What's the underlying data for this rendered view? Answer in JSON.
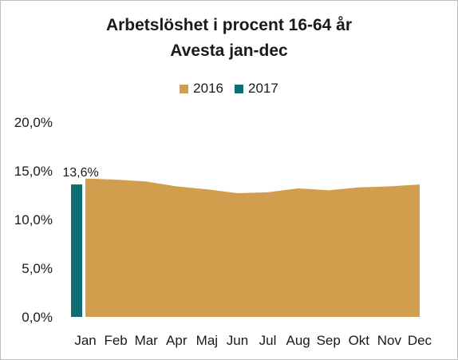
{
  "chart_data": {
    "type": "area",
    "title": "Arbetslöshet i procent 16-64 år",
    "subtitle": "Avesta jan-dec",
    "categories": [
      "Jan",
      "Feb",
      "Mar",
      "Apr",
      "Maj",
      "Jun",
      "Jul",
      "Aug",
      "Sep",
      "Okt",
      "Nov",
      "Dec"
    ],
    "series": [
      {
        "name": "2016",
        "chart_type": "area",
        "color": "#d19e4e",
        "values": [
          14.2,
          14.1,
          13.9,
          13.4,
          13.1,
          12.7,
          12.8,
          13.2,
          13.0,
          13.3,
          13.4,
          13.6
        ]
      },
      {
        "name": "2017",
        "chart_type": "bar",
        "color": "#0e6e73",
        "values": [
          13.6,
          null,
          null,
          null,
          null,
          null,
          null,
          null,
          null,
          null,
          null,
          null
        ]
      }
    ],
    "data_labels": [
      {
        "series": "2017",
        "category": "Jan",
        "text": "13,6%"
      }
    ],
    "y_ticks": [
      "0,0%",
      "5,0%",
      "10,0%",
      "15,0%",
      "20,0%"
    ],
    "y_tick_values": [
      0,
      5,
      10,
      15,
      20
    ],
    "ylim": [
      0,
      20
    ],
    "grid": false,
    "legend_position": "top"
  }
}
